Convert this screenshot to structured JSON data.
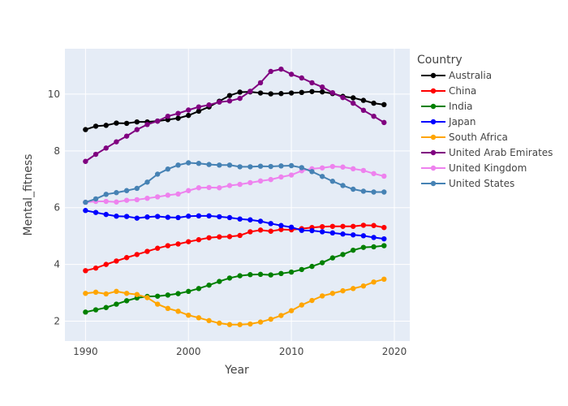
{
  "chart_data": {
    "type": "line",
    "xlabel": "Year",
    "ylabel": "Mental_fitness",
    "xlim": [
      1988,
      2021.5
    ],
    "ylim": [
      1.3,
      11.6
    ],
    "x_ticks": [
      1990,
      2000,
      2010,
      2020
    ],
    "y_ticks": [
      2,
      4,
      6,
      8,
      10
    ],
    "grid": true,
    "legend": {
      "title": "Country",
      "placement": "right"
    },
    "x": [
      1990,
      1991,
      1992,
      1993,
      1994,
      1995,
      1996,
      1997,
      1998,
      1999,
      2000,
      2001,
      2002,
      2003,
      2004,
      2005,
      2006,
      2007,
      2008,
      2009,
      2010,
      2011,
      2012,
      2013,
      2014,
      2015,
      2016,
      2017,
      2018,
      2019
    ],
    "series": [
      {
        "name": "Australia",
        "color": "#000000",
        "values": [
          8.75,
          8.87,
          8.9,
          8.98,
          8.97,
          9.02,
          9.02,
          9.05,
          9.1,
          9.15,
          9.25,
          9.4,
          9.55,
          9.75,
          9.95,
          10.07,
          10.08,
          10.04,
          10.01,
          10.02,
          10.04,
          10.06,
          10.09,
          10.08,
          10.02,
          9.92,
          9.87,
          9.78,
          9.68,
          9.63
        ]
      },
      {
        "name": "China",
        "color": "#ff0000",
        "values": [
          3.78,
          3.87,
          4.0,
          4.12,
          4.24,
          4.35,
          4.46,
          4.57,
          4.66,
          4.72,
          4.8,
          4.87,
          4.94,
          4.97,
          4.98,
          5.02,
          5.15,
          5.21,
          5.17,
          5.23,
          5.22,
          5.26,
          5.3,
          5.33,
          5.34,
          5.34,
          5.34,
          5.38,
          5.37,
          5.3
        ]
      },
      {
        "name": "India",
        "color": "#008000",
        "values": [
          2.32,
          2.4,
          2.48,
          2.6,
          2.72,
          2.82,
          2.87,
          2.88,
          2.92,
          2.97,
          3.05,
          3.15,
          3.27,
          3.4,
          3.52,
          3.6,
          3.64,
          3.65,
          3.63,
          3.68,
          3.73,
          3.82,
          3.93,
          4.06,
          4.23,
          4.35,
          4.5,
          4.6,
          4.62,
          4.66
        ]
      },
      {
        "name": "Japan",
        "color": "#0000ff",
        "values": [
          5.9,
          5.83,
          5.76,
          5.7,
          5.69,
          5.63,
          5.67,
          5.69,
          5.66,
          5.65,
          5.7,
          5.71,
          5.71,
          5.68,
          5.65,
          5.6,
          5.57,
          5.52,
          5.44,
          5.37,
          5.31,
          5.2,
          5.19,
          5.15,
          5.11,
          5.07,
          5.04,
          5.01,
          4.95,
          4.9
        ]
      },
      {
        "name": "South Africa",
        "color": "#ffa500",
        "values": [
          2.98,
          3.02,
          2.96,
          3.05,
          2.98,
          2.94,
          2.83,
          2.6,
          2.45,
          2.35,
          2.21,
          2.12,
          2.02,
          1.93,
          1.88,
          1.88,
          1.9,
          1.97,
          2.07,
          2.2,
          2.37,
          2.57,
          2.73,
          2.89,
          2.98,
          3.07,
          3.15,
          3.24,
          3.38,
          3.48
        ]
      },
      {
        "name": "United Arab Emirates",
        "color": "#800080",
        "values": [
          7.63,
          7.88,
          8.1,
          8.32,
          8.52,
          8.75,
          8.93,
          9.05,
          9.22,
          9.32,
          9.44,
          9.55,
          9.62,
          9.72,
          9.76,
          9.85,
          10.1,
          10.4,
          10.8,
          10.88,
          10.7,
          10.57,
          10.4,
          10.25,
          10.05,
          9.88,
          9.68,
          9.43,
          9.22,
          9.0
        ]
      },
      {
        "name": "United Kingdom",
        "color": "#ee82ee",
        "values": [
          6.19,
          6.22,
          6.22,
          6.2,
          6.26,
          6.28,
          6.33,
          6.38,
          6.44,
          6.48,
          6.6,
          6.7,
          6.71,
          6.7,
          6.78,
          6.82,
          6.88,
          6.94,
          6.99,
          7.08,
          7.15,
          7.3,
          7.37,
          7.4,
          7.45,
          7.43,
          7.37,
          7.31,
          7.2,
          7.11
        ]
      },
      {
        "name": "United States",
        "color": "#4682b4",
        "values": [
          6.19,
          6.31,
          6.47,
          6.53,
          6.6,
          6.68,
          6.9,
          7.18,
          7.36,
          7.5,
          7.58,
          7.56,
          7.52,
          7.5,
          7.5,
          7.44,
          7.44,
          7.46,
          7.45,
          7.47,
          7.48,
          7.41,
          7.27,
          7.1,
          6.93,
          6.78,
          6.65,
          6.58,
          6.55,
          6.55
        ]
      }
    ]
  }
}
